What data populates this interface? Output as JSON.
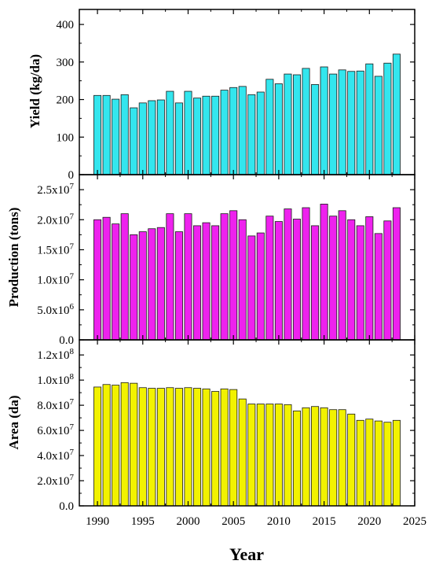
{
  "chart_data": [
    {
      "type": "bar",
      "ylabel": "Yield (kg/da)",
      "bar_color": "#33e6ee",
      "ylim": [
        0,
        440
      ],
      "yticks": [
        0,
        100,
        200,
        300,
        400
      ],
      "ytick_labels": [
        "0",
        "100",
        "200",
        "300",
        "400"
      ],
      "x": [
        1990,
        1991,
        1992,
        1993,
        1994,
        1995,
        1996,
        1997,
        1998,
        1999,
        2000,
        2001,
        2002,
        2003,
        2004,
        2005,
        2006,
        2007,
        2008,
        2009,
        2010,
        2011,
        2012,
        2013,
        2014,
        2015,
        2016,
        2017,
        2018,
        2019,
        2020,
        2021,
        2022,
        2023
      ],
      "values": [
        211,
        211,
        201,
        213,
        178,
        191,
        197,
        199,
        222,
        191,
        222,
        204,
        209,
        209,
        225,
        232,
        235,
        213,
        220,
        254,
        242,
        268,
        266,
        283,
        240,
        287,
        268,
        279,
        275,
        276,
        295,
        262,
        297,
        321
      ]
    },
    {
      "type": "bar",
      "ylabel": "Production (tons)",
      "bar_color": "#ee22ee",
      "ylim": [
        0,
        27500000
      ],
      "yticks": [
        0,
        5000000,
        10000000,
        15000000,
        20000000,
        25000000
      ],
      "ytick_labels": [
        "0.0",
        "5.0x10^6",
        "1.0x10^7",
        "1.5x10^7",
        "2.0x10^7",
        "2.5x10^7"
      ],
      "x": [
        1990,
        1991,
        1992,
        1993,
        1994,
        1995,
        1996,
        1997,
        1998,
        1999,
        2000,
        2001,
        2002,
        2003,
        2004,
        2005,
        2006,
        2007,
        2008,
        2009,
        2010,
        2011,
        2012,
        2013,
        2014,
        2015,
        2016,
        2017,
        2018,
        2019,
        2020,
        2021,
        2022,
        2023
      ],
      "values": [
        20000000,
        20400000,
        19300000,
        21000000,
        17500000,
        18000000,
        18500000,
        18700000,
        21000000,
        18000000,
        21000000,
        19000000,
        19500000,
        19000000,
        21000000,
        21500000,
        20000000,
        17300000,
        17800000,
        20600000,
        19700000,
        21800000,
        20100000,
        22000000,
        19000000,
        22600000,
        20600000,
        21500000,
        20000000,
        19000000,
        20500000,
        17700000,
        19800000,
        22000000
      ]
    },
    {
      "type": "bar",
      "ylabel": "Area (da)",
      "xlabel": "Year",
      "bar_color": "#f2f200",
      "ylim": [
        0,
        132000000
      ],
      "yticks": [
        0,
        20000000,
        40000000,
        60000000,
        80000000,
        100000000,
        120000000
      ],
      "ytick_labels": [
        "0.0",
        "2.0x10^7",
        "4.0x10^7",
        "6.0x10^7",
        "8.0x10^7",
        "1.0x10^8",
        "1.2x10^8"
      ],
      "xlim": [
        1988,
        2025
      ],
      "xticks": [
        1990,
        1995,
        2000,
        2005,
        2010,
        2015,
        2020,
        2025
      ],
      "xtick_labels": [
        "1990",
        "1995",
        "2000",
        "2005",
        "2010",
        "2015",
        "2020",
        "2025"
      ],
      "x": [
        1990,
        1991,
        1992,
        1993,
        1994,
        1995,
        1996,
        1997,
        1998,
        1999,
        2000,
        2001,
        2002,
        2003,
        2004,
        2005,
        2006,
        2007,
        2008,
        2009,
        2010,
        2011,
        2012,
        2013,
        2014,
        2015,
        2016,
        2017,
        2018,
        2019,
        2020,
        2021,
        2022,
        2023
      ],
      "values": [
        94500000,
        96500000,
        96000000,
        98000000,
        97500000,
        94000000,
        93500000,
        93500000,
        94000000,
        93500000,
        94000000,
        93500000,
        93000000,
        91000000,
        93000000,
        92500000,
        85000000,
        81000000,
        81000000,
        81000000,
        81000000,
        80500000,
        75500000,
        78000000,
        79000000,
        78000000,
        76500000,
        76500000,
        73000000,
        68000000,
        69000000,
        67500000,
        66500000,
        68000000
      ]
    }
  ]
}
